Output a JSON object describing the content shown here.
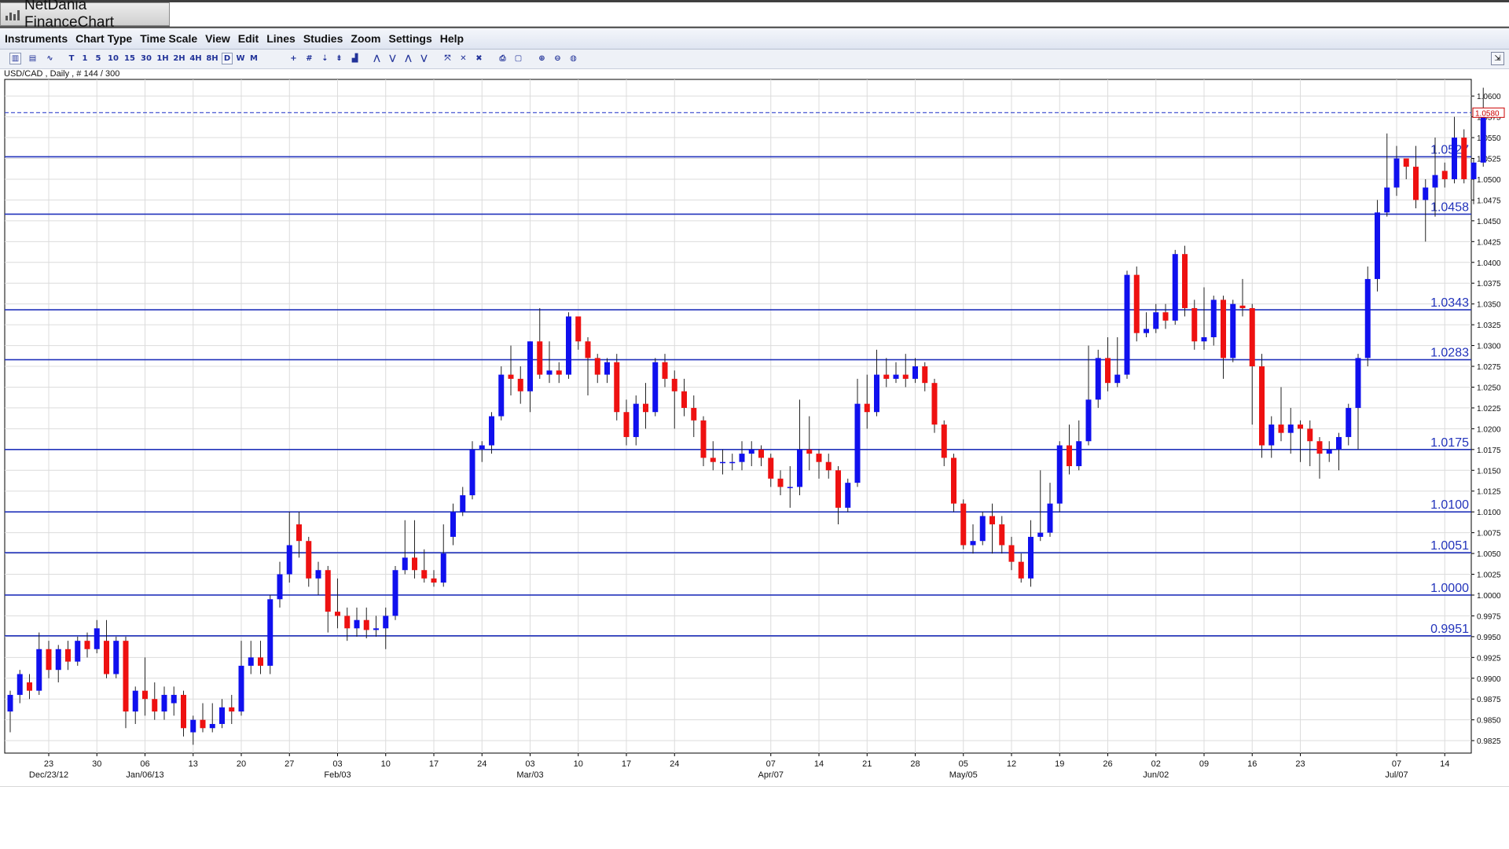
{
  "window": {
    "title": "NetDania FinanceChart"
  },
  "menu": [
    "Instruments",
    "Chart Type",
    "Time Scale",
    "View",
    "Edit",
    "Lines",
    "Studies",
    "Zoom",
    "Settings",
    "Help"
  ],
  "toolbar": {
    "timeframes": [
      "T",
      "1",
      "5",
      "10",
      "15",
      "30",
      "1H",
      "2H",
      "4H",
      "8H",
      "D",
      "W",
      "M"
    ],
    "active_timeframe": "D",
    "icons": [
      "candlestick-chart-icon",
      "bar-chart-icon",
      "line-chart-icon",
      "crosshair-icon",
      "grid-icon",
      "cursor-icon",
      "indicator-icon",
      "volume-icon",
      "fan-icon",
      "fibonacci-icon",
      "channel-icon",
      "gann-icon",
      "remove-study-icon",
      "delete-icon",
      "delete-all-icon",
      "print-icon",
      "print-preview-icon",
      "zoom-in-icon",
      "zoom-out-icon",
      "zoom-reset-icon"
    ]
  },
  "symbol_label": "USD/CAD , Daily , # 144 / 300",
  "colors": {
    "up": "#1010ee",
    "down": "#ee1111",
    "hline": "#2233bb",
    "grid": "#dcdcdc",
    "current": "#3344cc"
  },
  "chart_data": {
    "type": "candlestick",
    "instrument": "USD/CAD",
    "timeframe": "Daily",
    "ylim": [
      0.981,
      1.062
    ],
    "y_ticks": [
      "1.0600",
      "1.0575",
      "1.0550",
      "1.0525",
      "1.0500",
      "1.0475",
      "1.0450",
      "1.0425",
      "1.0400",
      "1.0375",
      "1.0350",
      "1.0325",
      "1.0300",
      "1.0275",
      "1.0250",
      "1.0225",
      "1.0200",
      "1.0175",
      "1.0150",
      "1.0125",
      "1.0100",
      "1.0075",
      "1.0050",
      "1.0025",
      "1.0000",
      "0.9975",
      "0.9950",
      "0.9925",
      "0.9900",
      "0.9875",
      "0.9850",
      "0.9825"
    ],
    "x_ticks": [
      {
        "bar": 4,
        "day": "23",
        "month": "Dec/23/12"
      },
      {
        "bar": 9,
        "day": "30"
      },
      {
        "bar": 14,
        "day": "06",
        "month": "Jan/06/13"
      },
      {
        "bar": 19,
        "day": "13"
      },
      {
        "bar": 24,
        "day": "20"
      },
      {
        "bar": 29,
        "day": "27"
      },
      {
        "bar": 34,
        "day": "03",
        "month": "Feb/03"
      },
      {
        "bar": 39,
        "day": "10"
      },
      {
        "bar": 44,
        "day": "17"
      },
      {
        "bar": 49,
        "day": "24"
      },
      {
        "bar": 54,
        "day": "03",
        "month": "Mar/03"
      },
      {
        "bar": 59,
        "day": "10"
      },
      {
        "bar": 64,
        "day": "17"
      },
      {
        "bar": 69,
        "day": "24"
      },
      {
        "bar": 79,
        "day": "07",
        "month": "Apr/07"
      },
      {
        "bar": 84,
        "day": "14"
      },
      {
        "bar": 89,
        "day": "21"
      },
      {
        "bar": 94,
        "day": "28"
      },
      {
        "bar": 99,
        "day": "05",
        "month": "May/05"
      },
      {
        "bar": 104,
        "day": "12"
      },
      {
        "bar": 109,
        "day": "19"
      },
      {
        "bar": 114,
        "day": "26"
      },
      {
        "bar": 119,
        "day": "02",
        "month": "Jun/02"
      },
      {
        "bar": 124,
        "day": "09"
      },
      {
        "bar": 129,
        "day": "16"
      },
      {
        "bar": 134,
        "day": "23"
      },
      {
        "bar": 144,
        "day": "07",
        "month": "Jul/07"
      },
      {
        "bar": 149,
        "day": "14"
      }
    ],
    "horizontal_lines": [
      {
        "value": 1.0527,
        "label": "1.0527"
      },
      {
        "value": 1.0458,
        "label": "1.0458"
      },
      {
        "value": 1.0343,
        "label": "1.0343"
      },
      {
        "value": 1.0283,
        "label": "1.0283"
      },
      {
        "value": 1.0175,
        "label": "1.0175"
      },
      {
        "value": 1.01,
        "label": "1.0100"
      },
      {
        "value": 1.0051,
        "label": "1.0051"
      },
      {
        "value": 1.0,
        "label": "1.0000"
      },
      {
        "value": 0.9951,
        "label": "0.9951"
      }
    ],
    "current_price": {
      "value": 1.058,
      "label": "1.0580"
    },
    "candles": [
      [
        0.986,
        0.988,
        0.9835,
        0.9885
      ],
      [
        0.988,
        0.9905,
        0.987,
        0.991
      ],
      [
        0.9895,
        0.9885,
        0.9875,
        0.9905
      ],
      [
        0.9885,
        0.9935,
        0.988,
        0.9955
      ],
      [
        0.9935,
        0.991,
        0.99,
        0.9945
      ],
      [
        0.991,
        0.9935,
        0.9895,
        0.994
      ],
      [
        0.9935,
        0.992,
        0.991,
        0.9945
      ],
      [
        0.992,
        0.9945,
        0.9915,
        0.995
      ],
      [
        0.9945,
        0.9935,
        0.9925,
        0.9955
      ],
      [
        0.9935,
        0.996,
        0.993,
        0.997
      ],
      [
        0.9945,
        0.9905,
        0.99,
        0.997
      ],
      [
        0.9905,
        0.9945,
        0.99,
        0.995
      ],
      [
        0.9945,
        0.986,
        0.984,
        0.995
      ],
      [
        0.986,
        0.9885,
        0.9845,
        0.989
      ],
      [
        0.9885,
        0.9875,
        0.9855,
        0.9925
      ],
      [
        0.9875,
        0.986,
        0.985,
        0.9895
      ],
      [
        0.986,
        0.988,
        0.985,
        0.989
      ],
      [
        0.987,
        0.988,
        0.9855,
        0.989
      ],
      [
        0.988,
        0.984,
        0.983,
        0.9885
      ],
      [
        0.9835,
        0.985,
        0.982,
        0.9855
      ],
      [
        0.985,
        0.984,
        0.9835,
        0.987
      ],
      [
        0.984,
        0.9845,
        0.9835,
        0.987
      ],
      [
        0.9845,
        0.9865,
        0.984,
        0.9875
      ],
      [
        0.9865,
        0.986,
        0.9845,
        0.988
      ],
      [
        0.986,
        0.9915,
        0.9855,
        0.9945
      ],
      [
        0.9915,
        0.9925,
        0.9905,
        0.9945
      ],
      [
        0.9925,
        0.9915,
        0.9905,
        0.9945
      ],
      [
        0.9915,
        0.9995,
        0.9905,
        1.0
      ],
      [
        0.9995,
        1.0025,
        0.9985,
        1.004
      ],
      [
        1.0025,
        1.006,
        1.0015,
        1.01
      ],
      [
        1.0085,
        1.0065,
        1.0045,
        1.01
      ],
      [
        1.0065,
        1.002,
        1.001,
        1.007
      ],
      [
        1.002,
        1.003,
        1.0,
        1.004
      ],
      [
        1.003,
        0.998,
        0.9955,
        1.0035
      ],
      [
        0.998,
        0.9975,
        0.996,
        1.002
      ],
      [
        0.9975,
        0.996,
        0.9945,
        0.9985
      ],
      [
        0.996,
        0.997,
        0.995,
        0.9985
      ],
      [
        0.997,
        0.9958,
        0.9948,
        0.9985
      ],
      [
        0.9958,
        0.996,
        0.995,
        0.9975
      ],
      [
        0.996,
        0.9975,
        0.9935,
        0.9985
      ],
      [
        0.9975,
        1.003,
        0.997,
        1.0035
      ],
      [
        1.003,
        1.0045,
        1.0025,
        1.009
      ],
      [
        1.0045,
        1.003,
        1.002,
        1.009
      ],
      [
        1.003,
        1.002,
        1.0015,
        1.0055
      ],
      [
        1.002,
        1.0015,
        1.001,
        1.003
      ],
      [
        1.0015,
        1.005,
        1.001,
        1.0085
      ],
      [
        1.007,
        1.01,
        1.006,
        1.011
      ],
      [
        1.01,
        1.012,
        1.0095,
        1.013
      ],
      [
        1.012,
        1.0175,
        1.0115,
        1.0185
      ],
      [
        1.0175,
        1.018,
        1.016,
        1.0185
      ],
      [
        1.018,
        1.0215,
        1.017,
        1.022
      ],
      [
        1.0215,
        1.0265,
        1.021,
        1.0275
      ],
      [
        1.0265,
        1.026,
        1.024,
        1.03
      ],
      [
        1.026,
        1.0245,
        1.023,
        1.0275
      ],
      [
        1.0245,
        1.0305,
        1.022,
        1.0305
      ],
      [
        1.0305,
        1.0265,
        1.026,
        1.0345
      ],
      [
        1.0265,
        1.027,
        1.0255,
        1.0305
      ],
      [
        1.027,
        1.0265,
        1.0255,
        1.028
      ],
      [
        1.0265,
        1.0335,
        1.026,
        1.034
      ],
      [
        1.0335,
        1.0305,
        1.0295,
        1.0335
      ],
      [
        1.0305,
        1.0285,
        1.024,
        1.031
      ],
      [
        1.0285,
        1.0265,
        1.0255,
        1.029
      ],
      [
        1.0265,
        1.028,
        1.0255,
        1.0285
      ],
      [
        1.028,
        1.022,
        1.021,
        1.029
      ],
      [
        1.022,
        1.019,
        1.018,
        1.0235
      ],
      [
        1.019,
        1.023,
        1.018,
        1.024
      ],
      [
        1.023,
        1.022,
        1.02,
        1.0255
      ],
      [
        1.022,
        1.028,
        1.0215,
        1.0285
      ],
      [
        1.028,
        1.026,
        1.025,
        1.029
      ],
      [
        1.026,
        1.0245,
        1.02,
        1.027
      ],
      [
        1.0245,
        1.0225,
        1.0215,
        1.026
      ],
      [
        1.0225,
        1.021,
        1.019,
        1.024
      ],
      [
        1.021,
        1.0165,
        1.0155,
        1.0215
      ],
      [
        1.0165,
        1.016,
        1.015,
        1.0185
      ],
      [
        1.016,
        1.016,
        1.0145,
        1.0175
      ],
      [
        1.016,
        1.016,
        1.015,
        1.017
      ],
      [
        1.016,
        1.017,
        1.015,
        1.0185
      ],
      [
        1.017,
        1.0175,
        1.0155,
        1.0185
      ],
      [
        1.0175,
        1.0165,
        1.0155,
        1.018
      ],
      [
        1.0165,
        1.014,
        1.013,
        1.017
      ],
      [
        1.014,
        1.013,
        1.012,
        1.015
      ],
      [
        1.013,
        1.013,
        1.0105,
        1.0155
      ],
      [
        1.013,
        1.0175,
        1.012,
        1.0235
      ],
      [
        1.0175,
        1.017,
        1.015,
        1.0215
      ],
      [
        1.017,
        1.016,
        1.014,
        1.0175
      ],
      [
        1.016,
        1.015,
        1.014,
        1.017
      ],
      [
        1.015,
        1.0105,
        1.0085,
        1.0155
      ],
      [
        1.0105,
        1.0135,
        1.01,
        1.014
      ],
      [
        1.0135,
        1.023,
        1.013,
        1.026
      ],
      [
        1.023,
        1.022,
        1.02,
        1.0265
      ],
      [
        1.022,
        1.0265,
        1.0215,
        1.0295
      ],
      [
        1.0265,
        1.026,
        1.025,
        1.0285
      ],
      [
        1.026,
        1.0265,
        1.0255,
        1.028
      ],
      [
        1.0265,
        1.026,
        1.025,
        1.029
      ],
      [
        1.026,
        1.0275,
        1.0255,
        1.0285
      ],
      [
        1.0275,
        1.0255,
        1.0245,
        1.028
      ],
      [
        1.0255,
        1.0205,
        1.0195,
        1.026
      ],
      [
        1.0205,
        1.0165,
        1.0155,
        1.021
      ],
      [
        1.0165,
        1.011,
        1.01,
        1.017
      ],
      [
        1.011,
        1.006,
        1.0055,
        1.0115
      ],
      [
        1.006,
        1.0065,
        1.005,
        1.0085
      ],
      [
        1.0065,
        1.0095,
        1.006,
        1.01
      ],
      [
        1.0095,
        1.0085,
        1.005,
        1.011
      ],
      [
        1.0085,
        1.006,
        1.005,
        1.0095
      ],
      [
        1.006,
        1.004,
        1.003,
        1.007
      ],
      [
        1.004,
        1.002,
        1.0015,
        1.005
      ],
      [
        1.002,
        1.007,
        1.001,
        1.009
      ],
      [
        1.007,
        1.0075,
        1.0065,
        1.015
      ],
      [
        1.0075,
        1.011,
        1.007,
        1.0135
      ],
      [
        1.011,
        1.018,
        1.01,
        1.0185
      ],
      [
        1.018,
        1.0155,
        1.0145,
        1.0205
      ],
      [
        1.0155,
        1.0185,
        1.015,
        1.021
      ],
      [
        1.0185,
        1.0235,
        1.018,
        1.03
      ],
      [
        1.0235,
        1.0285,
        1.0225,
        1.0295
      ],
      [
        1.0285,
        1.0255,
        1.0245,
        1.031
      ],
      [
        1.0255,
        1.0265,
        1.025,
        1.031
      ],
      [
        1.0265,
        1.0385,
        1.026,
        1.039
      ],
      [
        1.0385,
        1.0315,
        1.0305,
        1.0395
      ],
      [
        1.0315,
        1.032,
        1.031,
        1.034
      ],
      [
        1.032,
        1.034,
        1.0315,
        1.035
      ],
      [
        1.034,
        1.033,
        1.032,
        1.035
      ],
      [
        1.033,
        1.041,
        1.0325,
        1.0415
      ],
      [
        1.041,
        1.0345,
        1.0335,
        1.042
      ],
      [
        1.0345,
        1.0305,
        1.0295,
        1.0355
      ],
      [
        1.0305,
        1.031,
        1.0295,
        1.037
      ],
      [
        1.031,
        1.0355,
        1.03,
        1.036
      ],
      [
        1.0355,
        1.0285,
        1.026,
        1.036
      ],
      [
        1.0285,
        1.035,
        1.028,
        1.0355
      ],
      [
        1.0348,
        1.0345,
        1.0335,
        1.038
      ],
      [
        1.0345,
        1.0275,
        1.0205,
        1.035
      ],
      [
        1.0275,
        1.018,
        1.0165,
        1.029
      ],
      [
        1.018,
        1.0205,
        1.0165,
        1.0215
      ],
      [
        1.0205,
        1.0195,
        1.0185,
        1.025
      ],
      [
        1.0195,
        1.0205,
        1.017,
        1.0225
      ],
      [
        1.0205,
        1.02,
        1.016,
        1.021
      ],
      [
        1.02,
        1.0185,
        1.0155,
        1.021
      ],
      [
        1.0185,
        1.017,
        1.014,
        1.019
      ],
      [
        1.017,
        1.0175,
        1.016,
        1.0185
      ],
      [
        1.0175,
        1.019,
        1.015,
        1.0195
      ],
      [
        1.019,
        1.0225,
        1.018,
        1.023
      ],
      [
        1.0225,
        1.0285,
        1.0175,
        1.029
      ],
      [
        1.0285,
        1.038,
        1.0275,
        1.0395
      ],
      [
        1.038,
        1.046,
        1.0365,
        1.0475
      ],
      [
        1.046,
        1.049,
        1.0455,
        1.0555
      ],
      [
        1.049,
        1.0525,
        1.048,
        1.054
      ],
      [
        1.0525,
        1.0515,
        1.05,
        1.0525
      ],
      [
        1.0515,
        1.0475,
        1.0465,
        1.054
      ],
      [
        1.0475,
        1.049,
        1.0425,
        1.05
      ],
      [
        1.049,
        1.0505,
        1.0455,
        1.055
      ],
      [
        1.051,
        1.05,
        1.049,
        1.052
      ],
      [
        1.05,
        1.055,
        1.0495,
        1.0575
      ],
      [
        1.055,
        1.05,
        1.0495,
        1.056
      ],
      [
        1.05,
        1.052,
        1.047,
        1.0525
      ],
      [
        1.052,
        1.058,
        1.0515,
        1.061
      ]
    ]
  }
}
